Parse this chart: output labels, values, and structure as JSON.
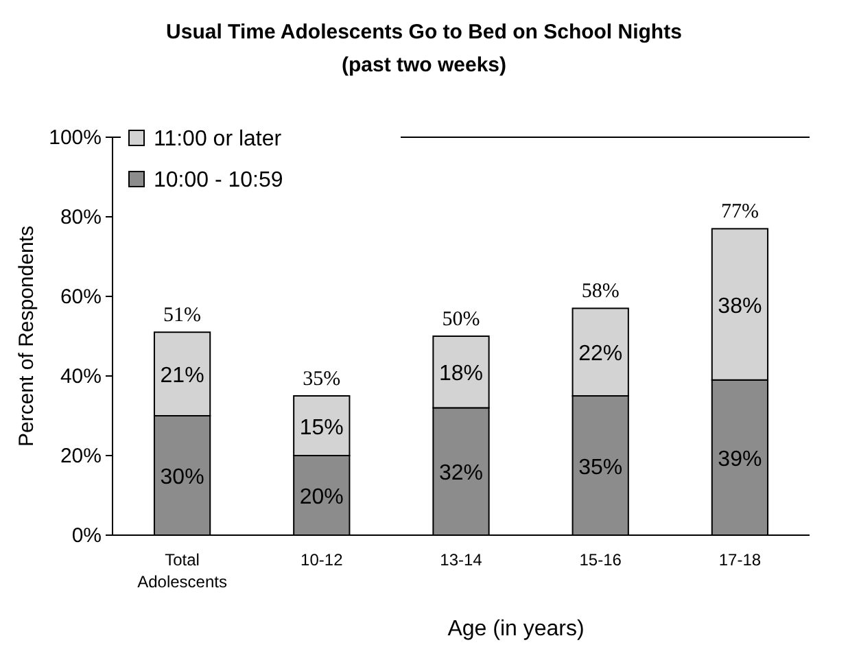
{
  "chart_data": {
    "type": "bar",
    "stacked": true,
    "title": "Usual Time Adolescents Go to Bed on School Nights",
    "subtitle": "(past two weeks)",
    "xlabel": "Age (in years)",
    "ylabel": "Percent of Respondents",
    "categories": [
      "Total Adolescents",
      "10-12",
      "13-14",
      "15-16",
      "17-18"
    ],
    "series": [
      {
        "name": "10:00 - 10:59",
        "color": "#8c8c8c",
        "values": [
          30,
          20,
          32,
          35,
          39
        ],
        "value_labels": [
          "30%",
          "20%",
          "32%",
          "35%",
          "39%"
        ]
      },
      {
        "name": "11:00 or later",
        "color": "#d3d3d3",
        "values": [
          21,
          15,
          18,
          22,
          38
        ],
        "value_labels": [
          "21%",
          "15%",
          "18%",
          "22%",
          "38%"
        ]
      }
    ],
    "totals": [
      "51%",
      "35%",
      "50%",
      "58%",
      "77%"
    ],
    "ylim": [
      0,
      100
    ],
    "yticks": [
      {
        "value": 0,
        "label": "0%"
      },
      {
        "value": 20,
        "label": "20%"
      },
      {
        "value": 40,
        "label": "40%"
      },
      {
        "value": 60,
        "label": "60%"
      },
      {
        "value": 80,
        "label": "80%"
      },
      {
        "value": 100,
        "label": "100%"
      }
    ],
    "legend": "top left",
    "grid": false
  }
}
